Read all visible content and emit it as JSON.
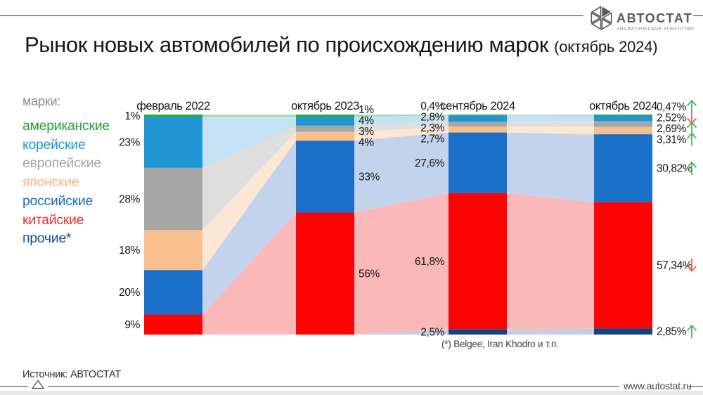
{
  "header": {
    "title": "Рынок новых автомобилей по происхождению марок",
    "subtitle": "(октябрь 2024)"
  },
  "logo": {
    "name": "АВТОСТАТ",
    "tagline": "АНАЛИТИЧЕСКОЕ АГЕНТСТВО"
  },
  "legend": {
    "label": "марки:",
    "items": [
      {
        "label": "американские",
        "color": "#21a038"
      },
      {
        "label": "корейские",
        "color": "#2196d5"
      },
      {
        "label": "европейские",
        "color": "#a6a6a6"
      },
      {
        "label": "японские",
        "color": "#f8b880"
      },
      {
        "label": "российские",
        "color": "#1b6ac9"
      },
      {
        "label": "китайские",
        "color": "#e73030"
      },
      {
        "label": "прочие*",
        "color": "#174f8f"
      }
    ]
  },
  "chart_data": {
    "type": "bar",
    "variant": "stacked-percent-columns-with-flows",
    "unit": "%",
    "categories": [
      "февраль 2022",
      "октябрь 2023",
      "сентябрь 2024",
      "октябрь 2024"
    ],
    "label_sides": [
      "left",
      "right",
      "left",
      "right"
    ],
    "series": [
      {
        "key": "american",
        "name": "американские",
        "color": "#21ab33",
        "flow_color": "#a3dab4",
        "values": [
          1,
          1,
          0.4,
          0.47
        ],
        "labels": [
          "1%",
          "1%",
          "0,4%",
          "0,47%"
        ],
        "trend": "up"
      },
      {
        "key": "korean",
        "name": "корейские",
        "color": "#2196d5",
        "flow_color": "#c3e3f5",
        "values": [
          23,
          4,
          2.8,
          2.52
        ],
        "labels": [
          "23%",
          "4%",
          "2,8%",
          "2,52%"
        ],
        "trend": "down"
      },
      {
        "key": "european",
        "name": "европейские",
        "color": "#a6a6a6",
        "flow_color": "#dedede",
        "values": [
          28,
          3,
          2.3,
          2.69
        ],
        "labels": [
          "28%",
          "3%",
          "2,3%",
          "2,69%"
        ],
        "trend": "up"
      },
      {
        "key": "japanese",
        "name": "японские",
        "color": "#f9c08f",
        "flow_color": "#fbe7d3",
        "values": [
          18,
          4,
          2.7,
          3.31
        ],
        "labels": [
          "18%",
          "4%",
          "2,7%",
          "3,31%"
        ],
        "trend": "up"
      },
      {
        "key": "russian",
        "name": "российские",
        "color": "#1b70c8",
        "flow_color": "#c3d3ed",
        "values": [
          20,
          33,
          27.6,
          30.82
        ],
        "labels": [
          "20%",
          "33%",
          "27,6%",
          "30,82%"
        ],
        "trend": "up"
      },
      {
        "key": "chinese",
        "name": "китайские",
        "color": "#fd0404",
        "flow_color": "#fbb8b8",
        "values": [
          9,
          56,
          61.8,
          57.34
        ],
        "labels": [
          "9%",
          "56%",
          "61,8%",
          "57,34%"
        ],
        "trend": "down"
      },
      {
        "key": "other",
        "name": "прочие*",
        "color": "#15427e",
        "flow_color": "#c5cfdf",
        "values": [
          0,
          0,
          2.5,
          2.85
        ],
        "labels": [
          null,
          null,
          "2,5%",
          "2,85%"
        ],
        "trend": "up"
      }
    ],
    "trend_colors": {
      "up": "#3fb25a",
      "down": "#ef5a52"
    }
  },
  "footnote": "(*) Belgee, Iran Khodro и т.п.",
  "footer": {
    "source": "Источник: АВТОСТАТ",
    "website": "www.autostat.ru"
  }
}
